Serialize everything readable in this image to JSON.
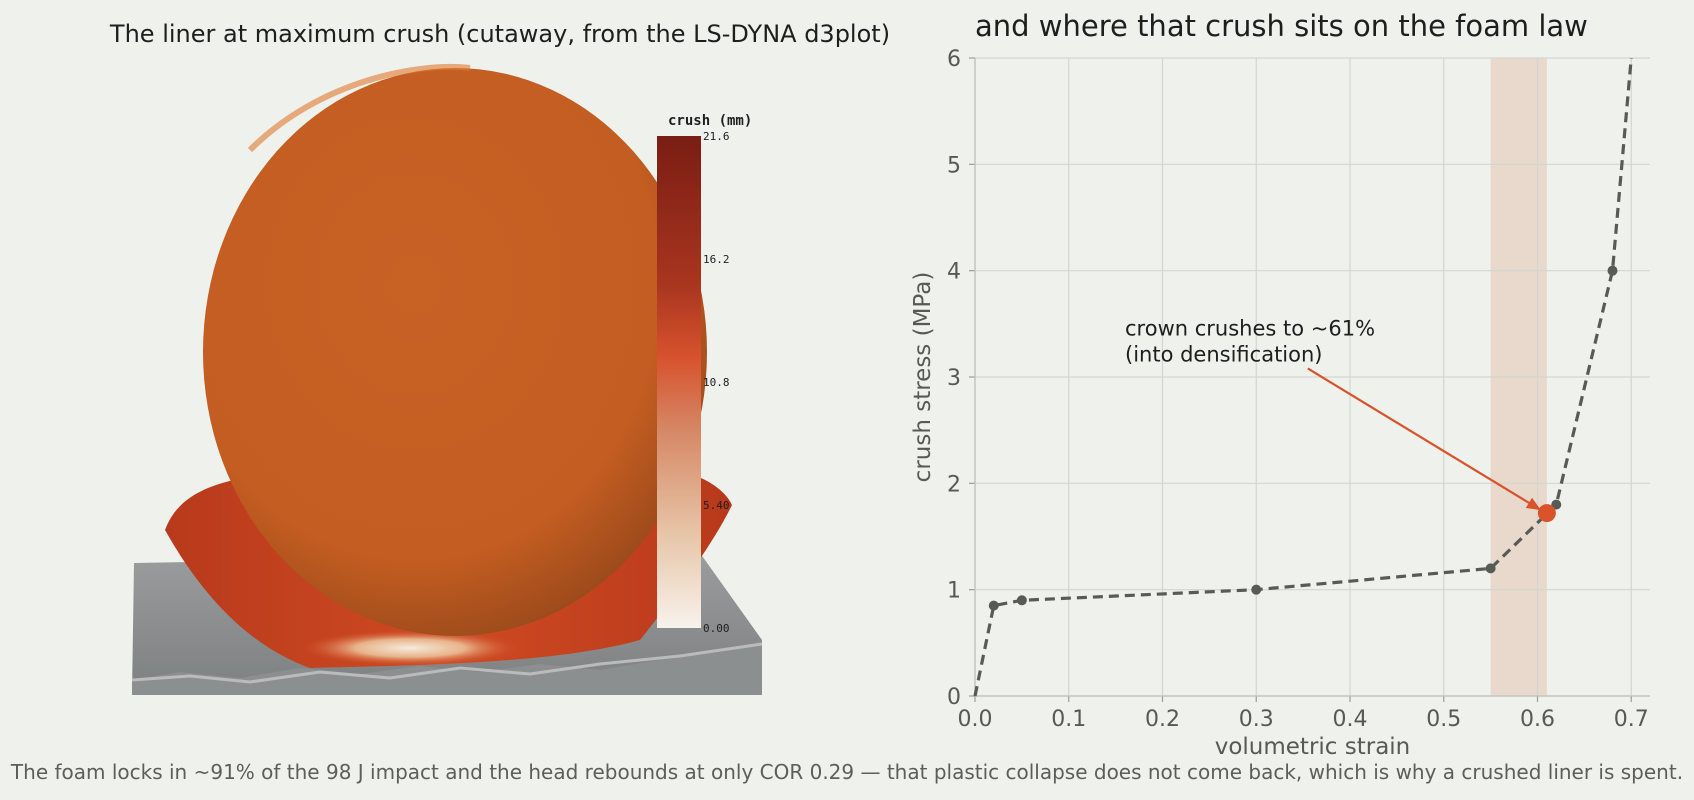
{
  "panels": {
    "left_title": "The liner at maximum crush (cutaway, from the LS-DYNA d3plot)",
    "right_title": "and where that crush sits on the foam law"
  },
  "colorbar": {
    "title": "crush (mm)",
    "ticks": [
      "21.6",
      "16.2",
      "10.8",
      "5.40",
      "0.00"
    ]
  },
  "caption": "The foam locks in ~91% of the 98 J impact and the head rebounds at only COR 0.29 — that plastic collapse does not come back, which is why a crushed liner is spent.",
  "colors": {
    "curve": "#565c55",
    "highlight": "#d9542b",
    "band": "#e8d9cc",
    "head": "#c65f22",
    "liner": "#c9431f",
    "base": "#8a8d8e"
  },
  "chart_data": {
    "type": "line",
    "title": "and where that crush sits on the foam law",
    "xlabel": "volumetric strain",
    "ylabel": "crush stress (MPa)",
    "xlim": [
      0,
      0.72
    ],
    "ylim": [
      0,
      6
    ],
    "xticks": [
      "0.0",
      "0.1",
      "0.2",
      "0.3",
      "0.4",
      "0.5",
      "0.6",
      "0.7"
    ],
    "yticks": [
      "0",
      "1",
      "2",
      "3",
      "4",
      "5",
      "6"
    ],
    "grid": true,
    "series": [
      {
        "x": [
          0,
          0.02,
          0.05,
          0.3,
          0.55,
          0.62,
          0.68,
          0.7
        ],
        "y": [
          0,
          0.85,
          0.9,
          1.0,
          1.2,
          1.8,
          4.0,
          6.0
        ],
        "markers": [
          0.02,
          0.05,
          0.3,
          0.55,
          0.62,
          0.68
        ]
      }
    ],
    "highlight_band": [
      0.55,
      0.61
    ],
    "highlight_point": {
      "x": 0.61,
      "y": 1.72
    },
    "annotation": {
      "lines": [
        "crown crushes to ~61%",
        "(into densification)"
      ],
      "text_at": [
        0.16,
        3.2
      ],
      "arrow_from": [
        0.355,
        3.08
      ],
      "arrow_to": [
        0.61,
        1.72
      ]
    }
  }
}
